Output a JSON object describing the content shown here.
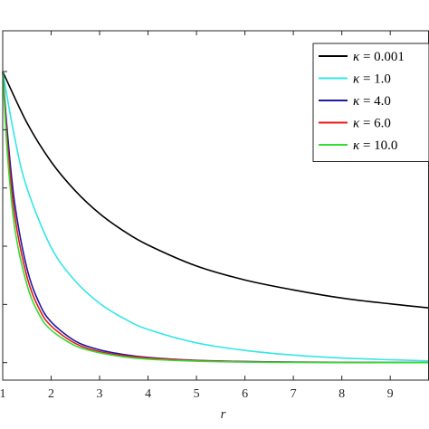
{
  "chart_data": {
    "type": "line",
    "xlabel": "r",
    "ylabel": "",
    "xlim": [
      1,
      9.8
    ],
    "ylim": [
      -0.3,
      5.7
    ],
    "x_ticks": [
      1,
      2,
      3,
      4,
      5,
      6,
      7,
      8,
      9
    ],
    "grid": false,
    "legend_position": "top-right",
    "series": [
      {
        "name": "κ = 0.001",
        "color": "#000000",
        "x": [
          1,
          1.5,
          2,
          2.5,
          3,
          3.5,
          4,
          5,
          6,
          7,
          8,
          9,
          9.8
        ],
        "y": [
          5.0,
          4.12,
          3.45,
          2.95,
          2.56,
          2.26,
          2.02,
          1.66,
          1.42,
          1.25,
          1.11,
          1.01,
          0.94
        ]
      },
      {
        "name": "κ = 1.0",
        "color": "#33e6e6",
        "x": [
          1,
          1.25,
          1.5,
          2,
          2.5,
          3,
          3.5,
          4,
          5,
          6,
          7,
          8,
          9,
          9.8
        ],
        "y": [
          5.0,
          3.85,
          3.0,
          1.98,
          1.4,
          1.02,
          0.76,
          0.57,
          0.34,
          0.21,
          0.13,
          0.08,
          0.05,
          0.03
        ]
      },
      {
        "name": "κ = 4.0",
        "color": "#1a1aa6",
        "x": [
          1,
          1.1,
          1.25,
          1.5,
          1.75,
          2,
          2.5,
          3,
          3.5,
          4,
          5,
          6,
          7,
          8,
          9,
          9.8
        ],
        "y": [
          5.0,
          3.92,
          2.72,
          1.62,
          1.03,
          0.7,
          0.37,
          0.22,
          0.14,
          0.09,
          0.04,
          0.02,
          0.01,
          0.005,
          0.002,
          0.001
        ]
      },
      {
        "name": "κ = 6.0",
        "color": "#e61a1a",
        "x": [
          1,
          1.1,
          1.25,
          1.5,
          1.75,
          2,
          2.5,
          3,
          3.5,
          4,
          5,
          6,
          7,
          8,
          9,
          9.8
        ],
        "y": [
          5.0,
          3.75,
          2.52,
          1.48,
          0.93,
          0.63,
          0.33,
          0.19,
          0.12,
          0.08,
          0.035,
          0.015,
          0.007,
          0.003,
          0.001,
          0.001
        ]
      },
      {
        "name": "κ = 10.0",
        "color": "#33dd33",
        "x": [
          1,
          1.1,
          1.25,
          1.5,
          1.75,
          2,
          2.5,
          3,
          3.5,
          4,
          5,
          6,
          7,
          8,
          9,
          9.8
        ],
        "y": [
          5.0,
          3.55,
          2.3,
          1.34,
          0.83,
          0.56,
          0.29,
          0.17,
          0.1,
          0.06,
          0.025,
          0.01,
          0.004,
          0.002,
          0.001,
          0.0
        ]
      }
    ]
  }
}
